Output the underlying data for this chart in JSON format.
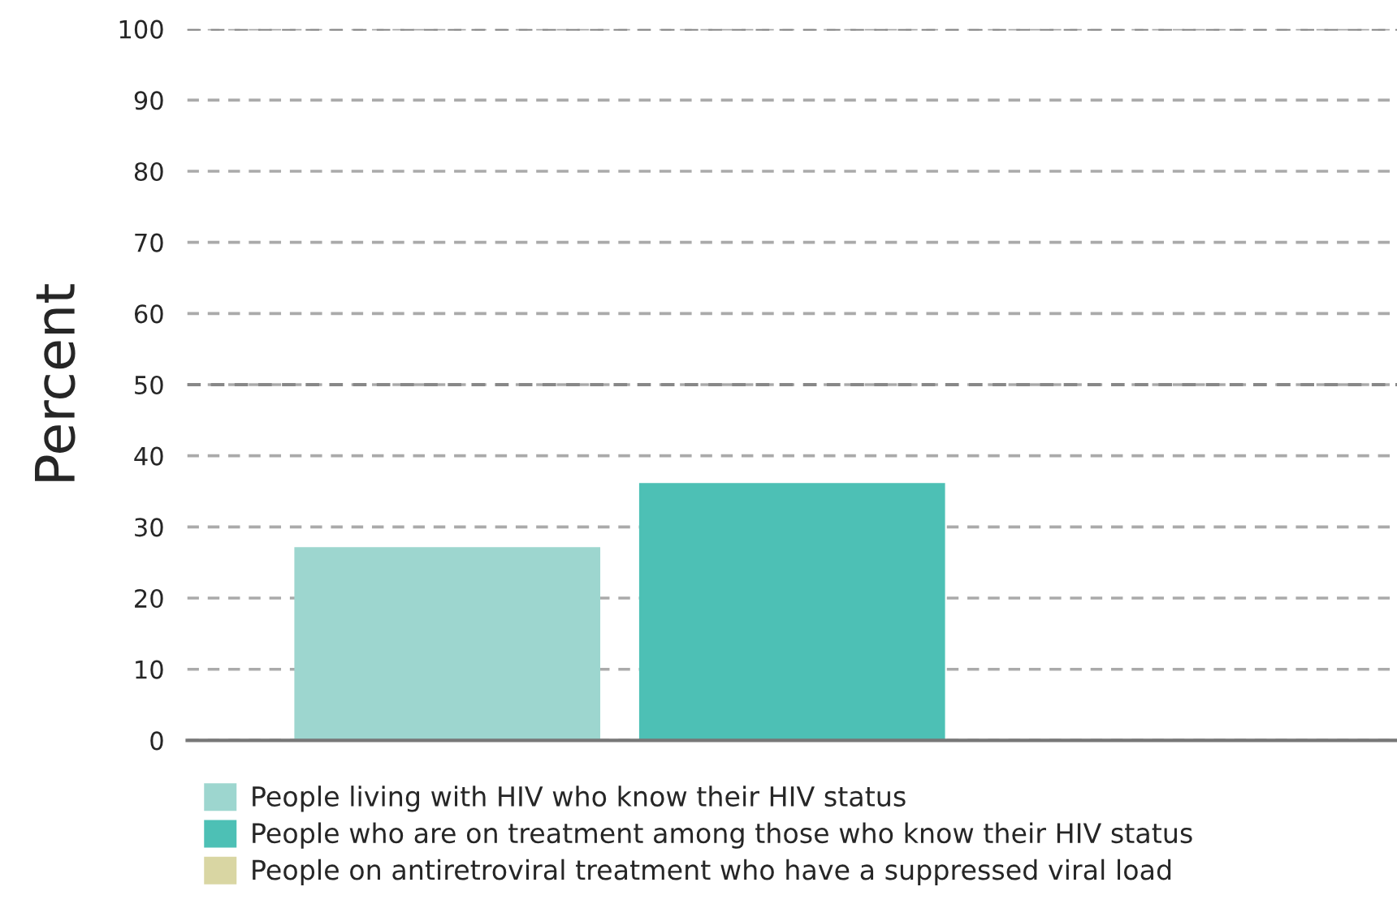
{
  "chart_data": {
    "type": "bar",
    "ylabel": "Percent",
    "categories": [
      null
    ],
    "series": [
      {
        "name": "People living with HIV who know their HIV status",
        "color": "#9dd6cf",
        "values": [
          27
        ]
      },
      {
        "name": "People who are on treatment among those who know their HIV status",
        "color": "#4dc0b5",
        "values": [
          36
        ]
      },
      {
        "name": "People on antiretroviral treatment who have a suppressed viral load",
        "color": "#d9d6a3",
        "values": [
          null
        ]
      }
    ],
    "ylim": [
      0,
      100
    ],
    "yticks": [
      0,
      10,
      20,
      30,
      40,
      50,
      60,
      70,
      80,
      90,
      100
    ],
    "grid": "y",
    "legend": "bottom",
    "ref_lines": [
      {
        "axis": "y",
        "value": 50,
        "color": "#888888",
        "line_style": "dashed"
      },
      {
        "axis": "y",
        "value": 100,
        "color": "#888888",
        "line_style": "dashed"
      }
    ]
  }
}
